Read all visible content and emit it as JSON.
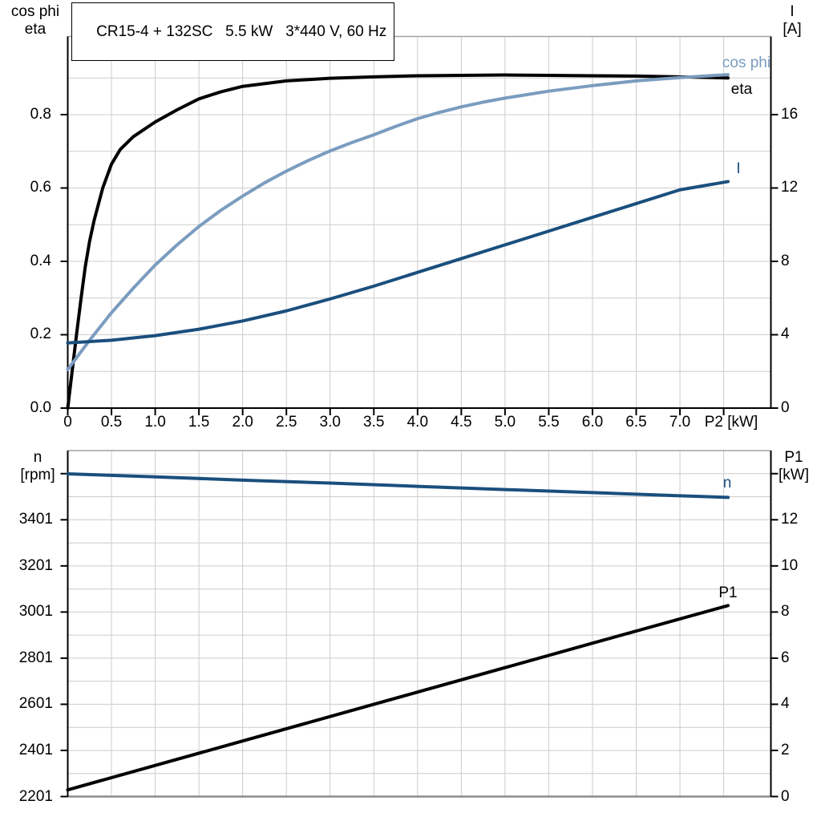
{
  "title_box": "CR15-4 + 132SC   5.5 kW   3*440 V, 60 Hz",
  "colors": {
    "black": "#000000",
    "light_blue": "#7a9cbf",
    "dark_blue": "#1a4f7d",
    "grid": "#cccccc",
    "frame": "#a0a0a0",
    "frame_bottom": "#8c8c8c",
    "axis": "#000000"
  },
  "chart_data": [
    {
      "type": "line",
      "title": "CR15-4 + 132SC   5.5 kW   3*440 V, 60 Hz",
      "x_axis": {
        "label": "P2 [kW]",
        "range": [
          0,
          8.04
        ],
        "ticks": [
          [
            0,
            "0"
          ],
          [
            0.5,
            "0.5"
          ],
          [
            1,
            "1.0"
          ],
          [
            1.5,
            "1.5"
          ],
          [
            2,
            "2.0"
          ],
          [
            2.5,
            "2.5"
          ],
          [
            3,
            "3.0"
          ],
          [
            3.5,
            "3.5"
          ],
          [
            4,
            "4.0"
          ],
          [
            4.5,
            "4.5"
          ],
          [
            5,
            "5.0"
          ],
          [
            5.5,
            "5.5"
          ],
          [
            6,
            "6.0"
          ],
          [
            6.5,
            "6.5"
          ],
          [
            7,
            "7.0"
          ],
          [
            7.5,
            ""
          ]
        ],
        "grid_values": [
          0.5,
          1,
          1.5,
          2,
          2.5,
          3,
          3.5,
          4,
          4.5,
          5,
          5.5,
          6,
          6.5,
          7,
          7.5
        ]
      },
      "y_left": {
        "title_lines": [
          "cos phi",
          "eta"
        ],
        "range": [
          0,
          1.013
        ],
        "ticks": [
          [
            0,
            "0.0"
          ],
          [
            0.2,
            "0.2"
          ],
          [
            0.4,
            "0.4"
          ],
          [
            0.6,
            "0.6"
          ],
          [
            0.8,
            "0.8"
          ]
        ],
        "grid_values": [
          0.1,
          0.2,
          0.3,
          0.4,
          0.5,
          0.6,
          0.7,
          0.8,
          0.9
        ]
      },
      "y_right": {
        "title_lines": [
          "I",
          "[A]"
        ],
        "range": [
          0,
          20.26
        ],
        "ticks": [
          [
            0,
            "0"
          ],
          [
            4,
            "4"
          ],
          [
            8,
            "8"
          ],
          [
            12,
            "12"
          ],
          [
            16,
            "16"
          ]
        ]
      },
      "series": [
        {
          "name": "eta",
          "label": "eta",
          "axis": "left",
          "color_key": "black",
          "points": [
            [
              0,
              0
            ],
            [
              0.05,
              0.1
            ],
            [
              0.1,
              0.2
            ],
            [
              0.15,
              0.295
            ],
            [
              0.2,
              0.385
            ],
            [
              0.25,
              0.455
            ],
            [
              0.3,
              0.51
            ],
            [
              0.4,
              0.6
            ],
            [
              0.5,
              0.665
            ],
            [
              0.6,
              0.705
            ],
            [
              0.75,
              0.74
            ],
            [
              1,
              0.78
            ],
            [
              1.25,
              0.813
            ],
            [
              1.5,
              0.843
            ],
            [
              1.75,
              0.862
            ],
            [
              2,
              0.877
            ],
            [
              2.5,
              0.892
            ],
            [
              3,
              0.899
            ],
            [
              3.5,
              0.903
            ],
            [
              4,
              0.906
            ],
            [
              4.5,
              0.907
            ],
            [
              5,
              0.908
            ],
            [
              5.5,
              0.907
            ],
            [
              6,
              0.906
            ],
            [
              6.5,
              0.905
            ],
            [
              7,
              0.903
            ],
            [
              7.55,
              0.9
            ]
          ]
        },
        {
          "name": "cos_phi",
          "label": "cos phi",
          "axis": "left",
          "color_key": "light_blue",
          "points": [
            [
              0,
              0.105
            ],
            [
              0.25,
              0.185
            ],
            [
              0.5,
              0.26
            ],
            [
              0.75,
              0.327
            ],
            [
              1,
              0.39
            ],
            [
              1.25,
              0.445
            ],
            [
              1.5,
              0.495
            ],
            [
              1.75,
              0.539
            ],
            [
              2,
              0.578
            ],
            [
              2.25,
              0.614
            ],
            [
              2.5,
              0.646
            ],
            [
              2.75,
              0.675
            ],
            [
              3,
              0.701
            ],
            [
              3.25,
              0.724
            ],
            [
              3.5,
              0.745
            ],
            [
              3.75,
              0.768
            ],
            [
              4,
              0.789
            ],
            [
              4.25,
              0.806
            ],
            [
              4.5,
              0.821
            ],
            [
              4.75,
              0.834
            ],
            [
              5,
              0.845
            ],
            [
              5.5,
              0.864
            ],
            [
              6,
              0.879
            ],
            [
              6.5,
              0.892
            ],
            [
              7,
              0.901
            ],
            [
              7.55,
              0.909
            ]
          ]
        },
        {
          "name": "I",
          "label": "I",
          "axis": "right",
          "color_key": "dark_blue",
          "points": [
            [
              0,
              3.55
            ],
            [
              0.5,
              3.7
            ],
            [
              1,
              3.95
            ],
            [
              1.5,
              4.3
            ],
            [
              2,
              4.75
            ],
            [
              2.5,
              5.3
            ],
            [
              3,
              5.95
            ],
            [
              3.5,
              6.65
            ],
            [
              4,
              7.4
            ],
            [
              4.5,
              8.15
            ],
            [
              5,
              8.9
            ],
            [
              5.5,
              9.65
            ],
            [
              6,
              10.4
            ],
            [
              6.5,
              11.15
            ],
            [
              7,
              11.9
            ],
            [
              7.55,
              12.35
            ]
          ]
        }
      ]
    },
    {
      "type": "line",
      "x_axis": {
        "label": "",
        "range": [
          0,
          8.04
        ],
        "ticks": [],
        "grid_values": [
          0.5,
          1,
          1.5,
          2,
          2.5,
          3,
          3.5,
          4,
          4.5,
          5,
          5.5,
          6,
          6.5,
          7,
          7.5
        ]
      },
      "y_left": {
        "title_lines": [
          "n",
          "[rpm]"
        ],
        "range": [
          2201,
          3701
        ],
        "ticks": [
          [
            2201,
            "2201"
          ],
          [
            2401,
            "2401"
          ],
          [
            2601,
            "2601"
          ],
          [
            2801,
            "2801"
          ],
          [
            3001,
            "3001"
          ],
          [
            3201,
            "3201"
          ],
          [
            3401,
            "3401"
          ],
          [
            3601,
            ""
          ]
        ]
      },
      "y_right": {
        "title_lines": [
          "P1",
          "[kW]"
        ],
        "range": [
          0,
          15
        ],
        "ticks": [
          [
            0,
            "0"
          ],
          [
            2,
            "2"
          ],
          [
            4,
            "4"
          ],
          [
            6,
            "6"
          ],
          [
            8,
            "8"
          ],
          [
            10,
            "10"
          ],
          [
            12,
            "12"
          ],
          [
            14,
            ""
          ]
        ],
        "grid_values": [
          1,
          2,
          3,
          4,
          5,
          6,
          7,
          8,
          9,
          10,
          11,
          12,
          13,
          14
        ]
      },
      "series": [
        {
          "name": "n",
          "label": "n",
          "axis": "left",
          "color_key": "dark_blue",
          "points": [
            [
              0,
              3600
            ],
            [
              1,
              3587
            ],
            [
              2,
              3573
            ],
            [
              3,
              3560
            ],
            [
              4,
              3546
            ],
            [
              5,
              3532
            ],
            [
              6,
              3519
            ],
            [
              7,
              3505
            ],
            [
              7.55,
              3498
            ]
          ]
        },
        {
          "name": "P1",
          "label": "P1",
          "axis": "right",
          "color_key": "black",
          "points": [
            [
              0,
              0.29
            ],
            [
              2,
              2.41
            ],
            [
              4,
              4.53
            ],
            [
              6,
              6.65
            ],
            [
              7.55,
              8.28
            ]
          ]
        }
      ]
    }
  ]
}
